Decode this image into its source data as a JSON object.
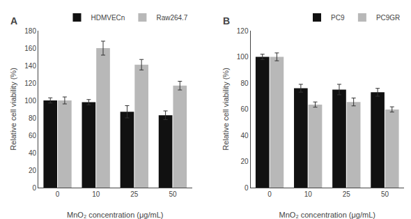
{
  "chart_data": [
    {
      "type": "bar",
      "title": "A",
      "categories": [
        "0",
        "10",
        "25",
        "50"
      ],
      "series": [
        {
          "name": "HDMVECn",
          "color": "#111111",
          "values": [
            100,
            98,
            87,
            83
          ],
          "errors": [
            3,
            3,
            7,
            5
          ]
        },
        {
          "name": "Raw264.7",
          "color": "#b8b8b8",
          "values": [
            100,
            160,
            141,
            117
          ],
          "errors": [
            4,
            8,
            6,
            5
          ]
        }
      ],
      "xlabel": "MnO₂ concentration (μg/mL)",
      "ylabel": "Relative cell viability (%)",
      "ylim": [
        0,
        180
      ],
      "yticks": [
        0,
        20,
        40,
        60,
        80,
        100,
        120,
        140,
        160,
        180
      ],
      "legend": "upper right",
      "grid": false
    },
    {
      "type": "bar",
      "title": "B",
      "categories": [
        "0",
        "10",
        "25",
        "50"
      ],
      "series": [
        {
          "name": "PC9",
          "color": "#111111",
          "values": [
            100,
            76,
            75,
            72.9
          ],
          "errors": [
            2,
            3,
            4,
            3
          ]
        },
        {
          "name": "PC9GR",
          "color": "#b8b8b8",
          "values": [
            100,
            63.5,
            65.5,
            59.8
          ],
          "errors": [
            3,
            2,
            3,
            2
          ]
        }
      ],
      "xlabel": "MnO₂ concentration (μg/mL)",
      "ylabel": "Relative cell viability (%)",
      "ylim": [
        0,
        120
      ],
      "yticks": [
        0,
        20,
        40,
        60,
        80,
        100,
        120
      ],
      "legend": "upper right",
      "grid": false
    }
  ]
}
